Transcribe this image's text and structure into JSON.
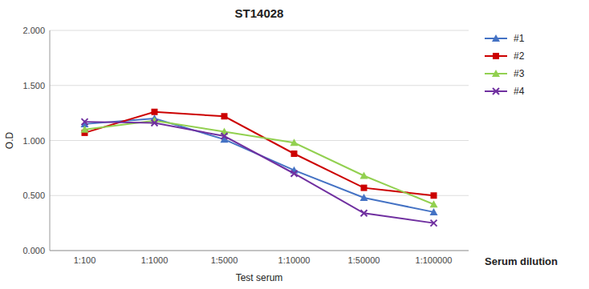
{
  "chart_data": {
    "type": "line",
    "title": "ST14028",
    "xlabel": "Test serum",
    "ylabel": "O.D",
    "categories": [
      "1:100",
      "1:1000",
      "1:5000",
      "1:10000",
      "1:50000",
      "1:100000"
    ],
    "series": [
      {
        "name": "#1",
        "color": "#4472C4",
        "marker": "triangle",
        "values": [
          1.15,
          1.2,
          1.01,
          0.73,
          0.48,
          0.35
        ]
      },
      {
        "name": "#2",
        "color": "#CC0000",
        "marker": "square",
        "values": [
          1.07,
          1.26,
          1.22,
          0.88,
          0.57,
          0.5
        ]
      },
      {
        "name": "#3",
        "color": "#92D050",
        "marker": "triangle",
        "values": [
          1.1,
          1.18,
          1.08,
          0.98,
          0.68,
          0.42
        ]
      },
      {
        "name": "#4",
        "color": "#7030A0",
        "marker": "x",
        "values": [
          1.17,
          1.16,
          1.04,
          0.7,
          0.34,
          0.25
        ]
      }
    ],
    "ylim": [
      0,
      2
    ],
    "yticks": [
      {
        "value": 0,
        "label": "0.000"
      },
      {
        "value": 0.5,
        "label": "0.500"
      },
      {
        "value": 1,
        "label": "1.000"
      },
      {
        "value": 1.5,
        "label": "1.500"
      },
      {
        "value": 2,
        "label": "2.000"
      }
    ],
    "grid": "y",
    "legend": "right",
    "annotations": [
      "Serum dilution"
    ]
  }
}
